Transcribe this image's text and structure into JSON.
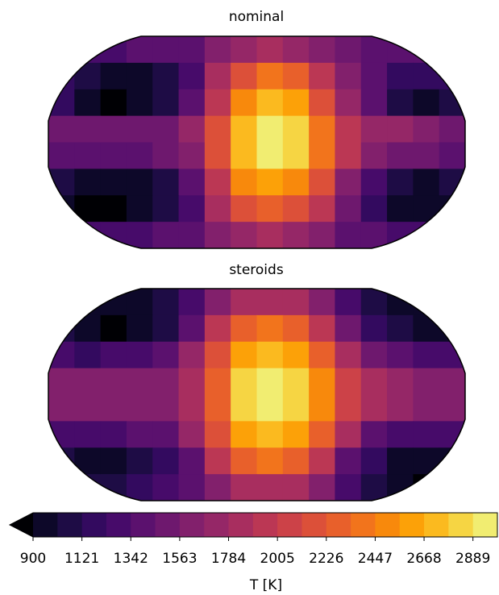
{
  "chart_data": [
    {
      "type": "heatmap",
      "title": "nominal",
      "values": [
        [
          1300,
          1300,
          1300,
          1350,
          1400,
          1450,
          1600,
          1750,
          1800,
          1750,
          1650,
          1500,
          1400,
          1350,
          1350,
          1300
        ],
        [
          1150,
          1050,
          1000,
          1000,
          1100,
          1300,
          1800,
          2200,
          2350,
          2250,
          1950,
          1600,
          1400,
          1200,
          1150,
          1150
        ],
        [
          1200,
          950,
          890,
          920,
          1050,
          1350,
          2000,
          2500,
          2700,
          2600,
          2200,
          1700,
          1350,
          1050,
          1000,
          1100
        ],
        [
          1500,
          1500,
          1500,
          1500,
          1550,
          1700,
          2200,
          2700,
          2950,
          2800,
          2400,
          1900,
          1700,
          1700,
          1650,
          1550
        ],
        [
          1450,
          1450,
          1450,
          1450,
          1500,
          1650,
          2200,
          2700,
          2900,
          2800,
          2400,
          1900,
          1650,
          1550,
          1500,
          1450
        ],
        [
          1100,
          1000,
          950,
          1000,
          1100,
          1350,
          2000,
          2500,
          2650,
          2550,
          2150,
          1600,
          1300,
          1100,
          1000,
          1050
        ],
        [
          1000,
          890,
          890,
          950,
          1100,
          1300,
          1800,
          2200,
          2300,
          2200,
          1900,
          1500,
          1200,
          1000,
          950,
          1000
        ],
        [
          1250,
          1250,
          1250,
          1300,
          1350,
          1450,
          1600,
          1750,
          1800,
          1750,
          1600,
          1450,
          1350,
          1300,
          1250,
          1250
        ]
      ]
    },
    {
      "type": "heatmap",
      "title": "steroids",
      "values": [
        [
          1100,
          1000,
          950,
          950,
          1050,
          1300,
          1600,
          1800,
          1850,
          1800,
          1600,
          1300,
          1100,
          1000,
          1000,
          1050
        ],
        [
          1050,
          950,
          890,
          950,
          1100,
          1400,
          1900,
          2300,
          2400,
          2300,
          1950,
          1500,
          1200,
          1050,
          1000,
          1000
        ],
        [
          1300,
          1200,
          1250,
          1300,
          1400,
          1700,
          2200,
          2600,
          2700,
          2600,
          2250,
          1800,
          1500,
          1350,
          1300,
          1300
        ],
        [
          1600,
          1600,
          1600,
          1600,
          1650,
          1850,
          2300,
          2800,
          2950,
          2850,
          2500,
          2050,
          1800,
          1700,
          1650,
          1600
        ],
        [
          1600,
          1600,
          1600,
          1600,
          1650,
          1850,
          2300,
          2800,
          2950,
          2850,
          2500,
          2050,
          1800,
          1700,
          1650,
          1600
        ],
        [
          1300,
          1300,
          1300,
          1350,
          1450,
          1700,
          2200,
          2600,
          2700,
          2600,
          2250,
          1800,
          1450,
          1300,
          1250,
          1250
        ],
        [
          1050,
          1000,
          1000,
          1050,
          1150,
          1400,
          1900,
          2300,
          2400,
          2300,
          1950,
          1450,
          1150,
          1000,
          950,
          1000
        ],
        [
          1050,
          1050,
          1100,
          1150,
          1250,
          1400,
          1600,
          1800,
          1850,
          1800,
          1600,
          1300,
          1100,
          950,
          890,
          950
        ]
      ]
    }
  ],
  "colorbar": {
    "label": "T [K]",
    "levels": [
      900,
      1010.5,
      1121,
      1231.5,
      1342,
      1452.5,
      1563,
      1673.5,
      1784,
      1894.5,
      2005,
      2115.5,
      2226,
      2336.5,
      2447,
      2557.5,
      2668,
      2778.5,
      2889,
      2999.5
    ],
    "colors": [
      "#0d0829",
      "#1e0c45",
      "#330a5f",
      "#470b6a",
      "#5b116e",
      "#6e186e",
      "#82206c",
      "#952767",
      "#a82e5f",
      "#bb3754",
      "#cc4248",
      "#dc5039",
      "#e8602b",
      "#f2741c",
      "#f8890c",
      "#fca108",
      "#fbba1f",
      "#f6d543",
      "#f1ed71"
    ],
    "under_color": "#000004",
    "ticks": [
      900,
      1121,
      1342,
      1563,
      1784,
      2005,
      2226,
      2447,
      2668,
      2889
    ]
  }
}
